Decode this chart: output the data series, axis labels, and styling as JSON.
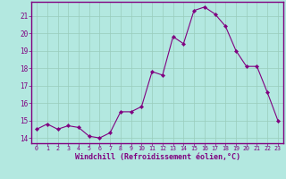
{
  "x": [
    0,
    1,
    2,
    3,
    4,
    5,
    6,
    7,
    8,
    9,
    10,
    11,
    12,
    13,
    14,
    15,
    16,
    17,
    18,
    19,
    20,
    21,
    22,
    23
  ],
  "y": [
    14.5,
    14.8,
    14.5,
    14.7,
    14.6,
    14.1,
    14.0,
    14.3,
    15.5,
    15.5,
    15.8,
    17.8,
    17.6,
    19.8,
    19.4,
    21.3,
    21.5,
    21.1,
    20.4,
    19.0,
    18.1,
    18.1,
    16.6,
    15.0
  ],
  "xlim": [
    -0.5,
    23.5
  ],
  "ylim": [
    13.7,
    21.8
  ],
  "yticks": [
    14,
    15,
    16,
    17,
    18,
    19,
    20,
    21
  ],
  "xticks": [
    0,
    1,
    2,
    3,
    4,
    5,
    6,
    7,
    8,
    9,
    10,
    11,
    12,
    13,
    14,
    15,
    16,
    17,
    18,
    19,
    20,
    21,
    22,
    23
  ],
  "xtick_labels": [
    "0",
    "1",
    "2",
    "3",
    "4",
    "5",
    "6",
    "7",
    "8",
    "9",
    "10",
    "11",
    "12",
    "13",
    "14",
    "15",
    "16",
    "17",
    "18",
    "19",
    "20",
    "21",
    "22",
    "23"
  ],
  "xlabel": "Windchill (Refroidissement éolien,°C)",
  "line_color": "#800080",
  "marker_color": "#800080",
  "bg_color": "#b3e8e0",
  "grid_color": "#99ccbb",
  "spine_color": "#800080",
  "tick_color": "#800080",
  "xlabel_color": "#800080"
}
